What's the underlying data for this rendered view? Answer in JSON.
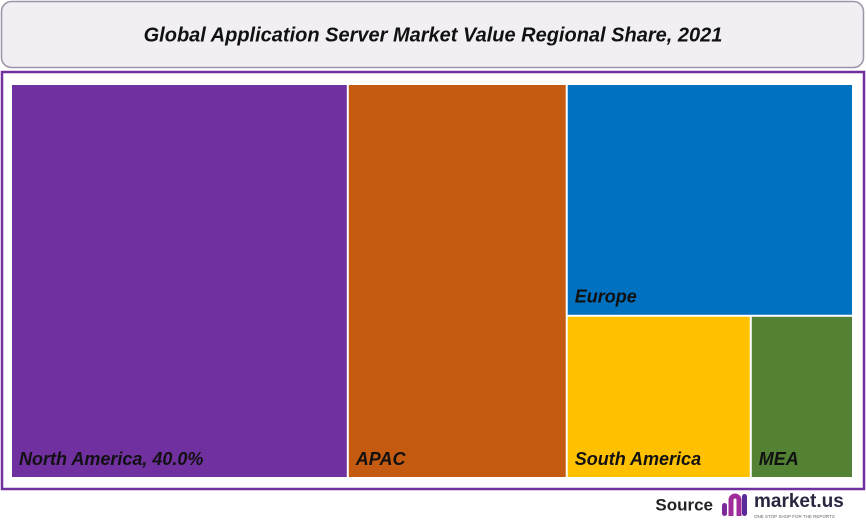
{
  "chart_data": {
    "type": "treemap",
    "title": "Global Application Server Market Value Regional Share, 2021",
    "categories": [
      "North America, 40.0%",
      "APAC",
      "Europe",
      "South America",
      "MEA"
    ],
    "values": [
      40,
      26,
      20,
      9,
      5
    ],
    "colors": [
      "#7030a0",
      "#c55a11",
      "#0070c0",
      "#ffc000",
      "#548235"
    ]
  },
  "footer": {
    "source": "Source",
    "brand": "market.us",
    "tagline": "ONE STOP SHOP FOR THE REPORTS"
  }
}
